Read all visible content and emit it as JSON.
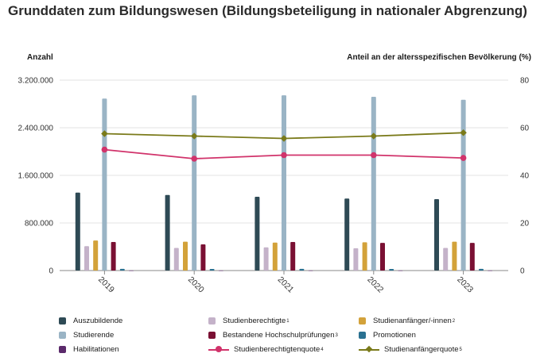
{
  "title": "Grunddaten zum Bildungswesen (Bildungsbeteiligung in nationaler Abgrenzung)",
  "chart_data": {
    "type": "bar",
    "categories": [
      "2019",
      "2020",
      "2021",
      "2022",
      "2023"
    ],
    "ylabel_left": "Anzahl",
    "ylabel_right": "Anteil an der altersspezifischen Bevölkerung (%)",
    "ylim_left": [
      0,
      3200000
    ],
    "ylim_right": [
      0,
      80
    ],
    "yticks_left": [
      "0",
      "800.000",
      "1.600.000",
      "2.400.000",
      "3.200.000"
    ],
    "yticks_right": [
      "0",
      "20",
      "40",
      "60",
      "80"
    ],
    "grid": true,
    "legend_position": "bottom",
    "series": [
      {
        "name": "Auszubildende",
        "type": "bar",
        "axis": "left",
        "color": "#2e4a55",
        "values": [
          1310000,
          1270000,
          1240000,
          1210000,
          1200000
        ]
      },
      {
        "name": "Studienberechtigte",
        "sup": "1",
        "type": "bar",
        "axis": "left",
        "color": "#c4b2c9",
        "values": [
          410000,
          380000,
          390000,
          375000,
          380000
        ]
      },
      {
        "name": "Studienanfänger/-innen",
        "sup": "2",
        "type": "bar",
        "axis": "left",
        "color": "#d3a23a",
        "values": [
          505000,
          485000,
          470000,
          475000,
          485000
        ]
      },
      {
        "name": "Studierende",
        "type": "bar",
        "axis": "left",
        "color": "#9ab4c5",
        "values": [
          2890000,
          2945000,
          2945000,
          2920000,
          2870000
        ]
      },
      {
        "name": "Bestandene Hochschulprüfungen",
        "sup": "3",
        "type": "bar",
        "axis": "left",
        "color": "#7a1033",
        "values": [
          480000,
          440000,
          480000,
          465000,
          465000
        ]
      },
      {
        "name": "Promotionen",
        "type": "bar",
        "axis": "left",
        "color": "#2a7191",
        "values": [
          28000,
          27000,
          29000,
          27000,
          28000
        ]
      },
      {
        "name": "Habilitationen",
        "type": "bar",
        "axis": "left",
        "color": "#5b2a6b",
        "values": [
          1500,
          1500,
          1600,
          1500,
          1500
        ]
      },
      {
        "name": "Studienberechtigtenquote",
        "sup": "4",
        "type": "line",
        "axis": "right",
        "color": "#d1336b",
        "marker": "circle",
        "values": [
          50.8,
          47.0,
          48.5,
          48.5,
          47.3
        ]
      },
      {
        "name": "Studienanfängerquote",
        "sup": "5",
        "type": "line",
        "axis": "right",
        "color": "#7a7a1a",
        "marker": "diamond",
        "values": [
          57.5,
          56.5,
          55.5,
          56.5,
          57.9
        ]
      }
    ]
  }
}
